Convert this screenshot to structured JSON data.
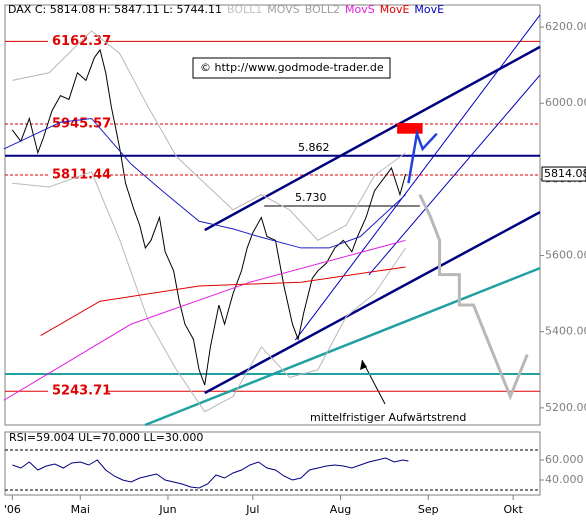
{
  "chart_data": [
    {
      "type": "line",
      "header_items": [
        {
          "text": "DAX C: 5814.08 H: 5847.11 L: 5744.11",
          "color": "#000000"
        },
        {
          "text": "BOLL1",
          "color": "#c0c0c0"
        },
        {
          "text": "MOVS",
          "color": "#a0a0a0"
        },
        {
          "text": "BOLL2",
          "color": "#a0a0a0"
        },
        {
          "text": "MovS",
          "color": "#e020e0"
        },
        {
          "text": "MovE",
          "color": "#e00000"
        },
        {
          "text": "MovE",
          "color": "#0000c0"
        }
      ],
      "copyright": "© http://www.godmode-trader.de",
      "trend_annotation": "mittelfristiger Aufwärtstrend",
      "last_price": 5814.08,
      "xlim": [
        94.4,
        283.5
      ],
      "xticks": [
        {
          "value": 97,
          "label": "'06"
        },
        {
          "value": 121,
          "label": "Mai"
        },
        {
          "value": 152,
          "label": "Jun"
        },
        {
          "value": 182,
          "label": "Jul"
        },
        {
          "value": 213,
          "label": "Aug"
        },
        {
          "value": 244,
          "label": "Sep"
        },
        {
          "value": 274,
          "label": "Okt"
        }
      ],
      "ylim": [
        5155,
        6258
      ],
      "yticks": [
        {
          "value": 5200,
          "label": "5200.00"
        },
        {
          "value": 5400,
          "label": "5400.00"
        },
        {
          "value": 5600,
          "label": "5600.00"
        },
        {
          "value": 5800,
          "label": "5800.00"
        },
        {
          "value": 6000,
          "label": "6000.00"
        },
        {
          "value": 6200,
          "label": "6200.00"
        }
      ],
      "series": [
        {
          "name": "DAX",
          "color": "#000000",
          "x": [
            97,
            100,
            103,
            106,
            108,
            111,
            114,
            117,
            120,
            123,
            126,
            128,
            130,
            132,
            135,
            137,
            140,
            142,
            144,
            146,
            149,
            151,
            154,
            156,
            158,
            161,
            163,
            165,
            167,
            170,
            172,
            175,
            178,
            180,
            182,
            185,
            187,
            190,
            193,
            196,
            198,
            200,
            203,
            205,
            208,
            211,
            214,
            217,
            219,
            222,
            225,
            228,
            231,
            234,
            236
          ],
          "values": [
            5930,
            5900,
            5960,
            5870,
            5910,
            5980,
            6020,
            6010,
            6080,
            6060,
            6120,
            6140,
            6080,
            5990,
            5880,
            5790,
            5720,
            5680,
            5620,
            5640,
            5700,
            5610,
            5560,
            5480,
            5420,
            5380,
            5300,
            5260,
            5360,
            5470,
            5420,
            5500,
            5560,
            5620,
            5660,
            5700,
            5650,
            5640,
            5520,
            5420,
            5380,
            5450,
            5540,
            5560,
            5580,
            5620,
            5640,
            5610,
            5650,
            5700,
            5770,
            5800,
            5830,
            5760,
            5814.08
          ]
        },
        {
          "name": "BOLL1",
          "color": "#b8b8b8",
          "x": [
            97,
            110,
            125,
            135,
            145,
            155,
            165,
            175,
            185,
            195,
            205,
            215,
            225,
            236
          ],
          "values": [
            6060,
            6080,
            6190,
            6130,
            5990,
            5860,
            5790,
            5720,
            5760,
            5720,
            5640,
            5680,
            5810,
            5870
          ]
        },
        {
          "name": "BOLL2",
          "color": "#b8b8b8",
          "x": [
            97,
            110,
            125,
            135,
            145,
            155,
            165,
            175,
            185,
            195,
            205,
            215,
            225,
            236
          ],
          "values": [
            5790,
            5780,
            5820,
            5640,
            5430,
            5300,
            5190,
            5230,
            5360,
            5280,
            5300,
            5440,
            5500,
            5620
          ]
        },
        {
          "name": "MovE",
          "color": "#2020c0",
          "x": [
            94,
            114,
            125,
            139,
            150,
            163,
            175,
            184,
            199,
            209,
            220,
            236
          ],
          "values": [
            5880,
            5950,
            5960,
            5840,
            5770,
            5690,
            5670,
            5650,
            5620,
            5620,
            5650,
            5760
          ]
        },
        {
          "name": "MovS",
          "color": "#e020e0",
          "x": [
            94,
            139,
            181,
            236
          ],
          "values": [
            5220,
            5420,
            5530,
            5640
          ]
        },
        {
          "name": "MovE",
          "color": "#e00000",
          "x": [
            107,
            128,
            163,
            199,
            236
          ],
          "values": [
            5390,
            5480,
            5520,
            5530,
            5570
          ]
        }
      ],
      "levels": [
        {
          "value": 6162.37,
          "color": "#e00000",
          "style": "solid",
          "label_color": "#e00000"
        },
        {
          "value": 5945.57,
          "color": "#e00000",
          "style": "dashed",
          "label_color": "#e00000"
        },
        {
          "value": 5811.44,
          "color": "#e00000",
          "style": "dashed",
          "label_color": "#e00000"
        },
        {
          "value": 5243.71,
          "color": "#e00000",
          "style": "solid",
          "label_color": "#e00000"
        }
      ],
      "marked_levels": [
        {
          "value": 5862,
          "label": "5.862",
          "color": "#000080",
          "x": [
            94.4,
            283.5
          ]
        },
        {
          "value": 5730,
          "label": "5.730",
          "color": "#000000",
          "x": [
            186,
            241
          ]
        }
      ],
      "support_level": 5289,
      "trendlines": [
        {
          "color": "#000080",
          "width": 2.5,
          "x": [
            165,
            283.5
          ],
          "y": [
            5667,
            6148
          ]
        },
        {
          "color": "#000080",
          "width": 2.5,
          "x": [
            165,
            283.5
          ],
          "y": [
            5239,
            5714
          ]
        },
        {
          "color": "#20a0a0",
          "width": 2.5,
          "x": [
            143.9,
            283.5
          ],
          "y": [
            5155,
            5567
          ]
        },
        {
          "color": "#0000c0",
          "width": 1,
          "x": [
            197,
            283.5
          ],
          "y": [
            5378,
            6232
          ]
        },
        {
          "color": "#0000c0",
          "width": 1,
          "x": [
            223,
            283.5
          ],
          "y": [
            5549,
            6074
          ]
        }
      ],
      "projection": {
        "color": "#b8b8b8",
        "x": [
          241,
          244.6,
          248,
          248,
          255,
          255,
          260,
          273,
          279
        ],
        "y": [
          5760,
          5705,
          5640,
          5550,
          5550,
          5470,
          5470,
          5230,
          5340
        ]
      },
      "target_path": {
        "color": "#2040e0",
        "x": [
          237,
          240,
          242,
          247
        ],
        "y": [
          5790,
          5920,
          5880,
          5920
        ]
      },
      "target_zone": {
        "color": "#ff0000",
        "x": [
          233,
          242
        ],
        "y": [
          5920,
          5948
        ]
      }
    },
    {
      "type": "line",
      "title": "RSI=59.004 UL=70.000 LL=30.000",
      "xlim": [
        94.4,
        283.5
      ],
      "ylim": [
        25,
        88
      ],
      "yticks": [
        {
          "value": 40,
          "label": "40.000"
        },
        {
          "value": 60,
          "label": "60.000"
        }
      ],
      "upper_line": 70,
      "lower_line": 30,
      "series": [
        {
          "name": "RSI",
          "color": "#000080",
          "x": [
            97,
            100,
            103,
            106,
            109,
            112,
            115,
            118,
            121,
            124,
            127,
            130,
            133,
            136,
            139,
            142,
            145,
            148,
            151,
            154,
            157,
            160,
            163,
            166,
            169,
            172,
            175,
            178,
            181,
            184,
            187,
            190,
            193,
            196,
            199,
            202,
            205,
            208,
            211,
            214,
            217,
            220,
            223,
            226,
            229,
            232,
            235,
            237
          ],
          "values": [
            55,
            52,
            58,
            50,
            54,
            56,
            52,
            57,
            58,
            55,
            60,
            50,
            44,
            40,
            38,
            42,
            44,
            46,
            40,
            38,
            36,
            33,
            32,
            36,
            45,
            42,
            47,
            50,
            55,
            58,
            52,
            50,
            44,
            40,
            42,
            50,
            52,
            54,
            55,
            54,
            52,
            55,
            58,
            60,
            62,
            58,
            60,
            59.004
          ]
        }
      ]
    }
  ]
}
